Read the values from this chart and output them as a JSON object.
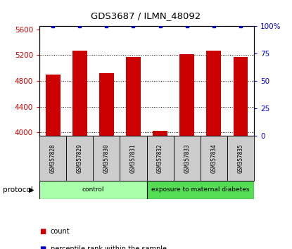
{
  "title": "GDS3687 / ILMN_48092",
  "samples": [
    "GSM357828",
    "GSM357829",
    "GSM357830",
    "GSM357831",
    "GSM357832",
    "GSM357833",
    "GSM357834",
    "GSM357835"
  ],
  "counts": [
    4900,
    5270,
    4920,
    5170,
    4030,
    5220,
    5270,
    5170
  ],
  "percentile_ranks": [
    100,
    100,
    100,
    100,
    100,
    100,
    100,
    100
  ],
  "ylim_left": [
    3950,
    5650
  ],
  "ylim_right": [
    0,
    100
  ],
  "yticks_left": [
    4000,
    4400,
    4800,
    5200,
    5600
  ],
  "yticks_right": [
    0,
    25,
    50,
    75,
    100
  ],
  "bar_color": "#cc0000",
  "dot_color": "#0000cc",
  "control_color": "#aaffaa",
  "diabetes_color": "#55dd55",
  "tick_label_bg": "#cccccc",
  "protocol_groups": [
    {
      "label": "control",
      "start": 0,
      "end": 3
    },
    {
      "label": "exposure to maternal diabetes",
      "start": 4,
      "end": 7
    }
  ]
}
